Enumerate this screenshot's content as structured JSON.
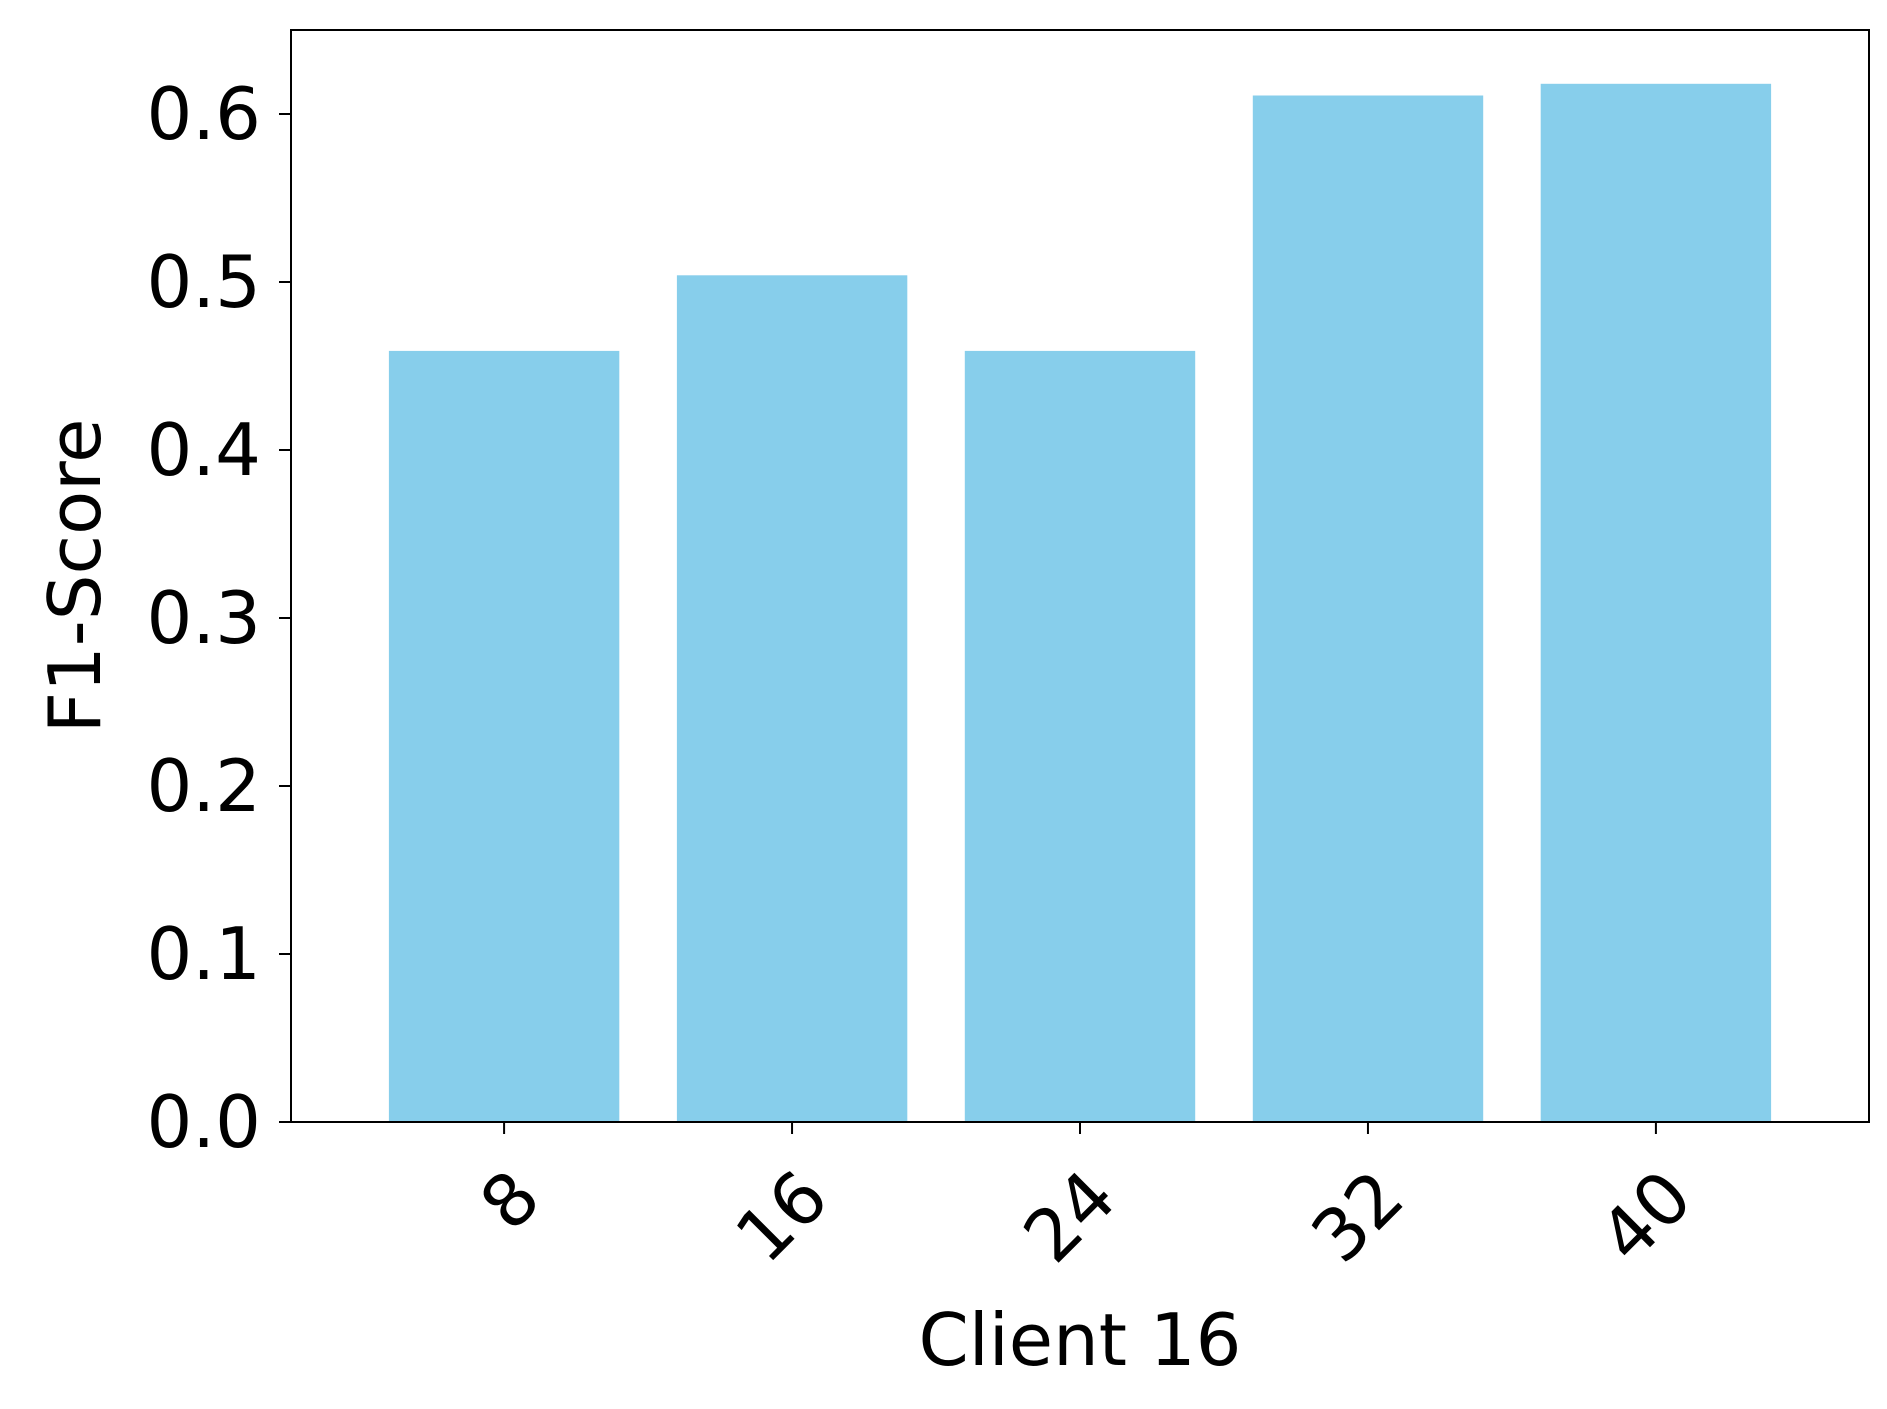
{
  "chart_data": {
    "type": "bar",
    "categories": [
      "8",
      "16",
      "24",
      "32",
      "40"
    ],
    "values": [
      0.459,
      0.504,
      0.459,
      0.611,
      0.618
    ],
    "title": "",
    "xlabel": "Client 16",
    "ylabel": "F1-Score",
    "ylim": [
      0,
      0.65
    ],
    "yticks": [
      0.0,
      0.1,
      0.2,
      0.3,
      0.4,
      0.5,
      0.6
    ],
    "ytick_labels": [
      "0.0",
      "0.1",
      "0.2",
      "0.3",
      "0.4",
      "0.5",
      "0.6"
    ],
    "xtick_rotation": "45°",
    "grid": false,
    "legend": "none",
    "bar_color": "#87CEEB",
    "axis_color": "#000000"
  }
}
